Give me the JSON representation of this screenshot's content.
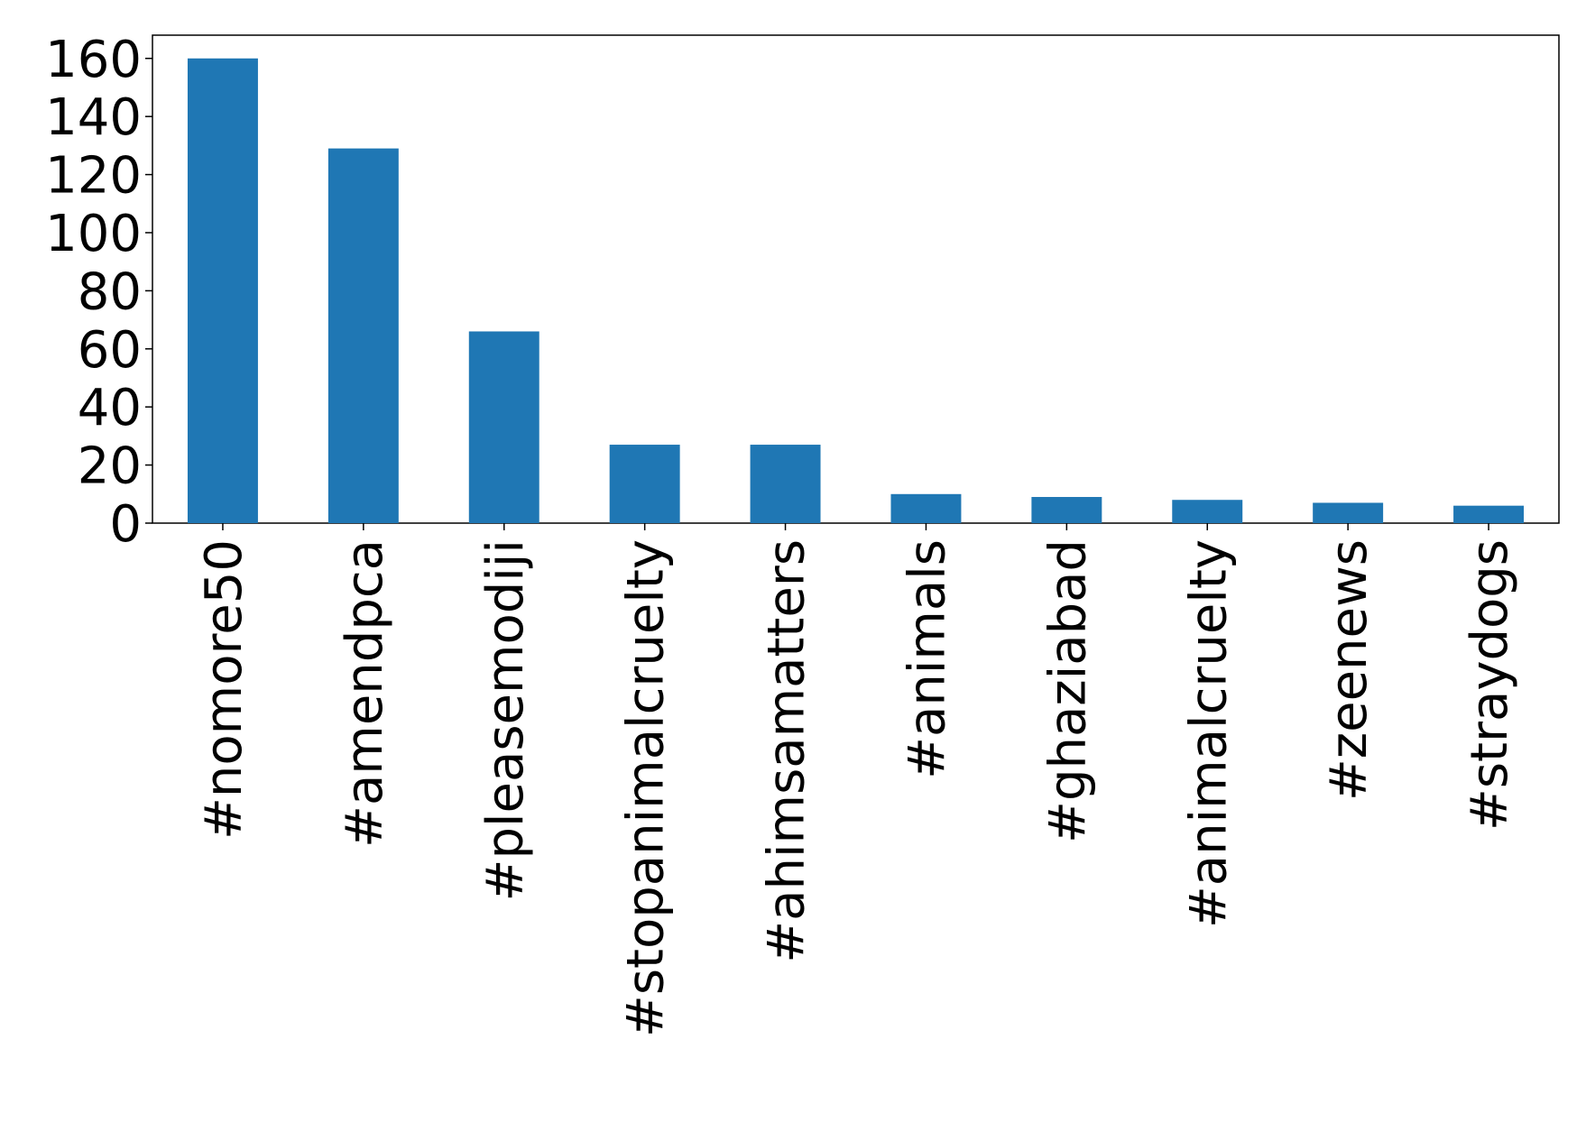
{
  "chart_data": {
    "type": "bar",
    "categories": [
      "#nomore50",
      "#amendpca",
      "#pleasemodiji",
      "#stopanimalcruelty",
      "#ahimsamatters",
      "#animals",
      "#ghaziabad",
      "#animalcruelty",
      "#zeenews",
      "#straydogs"
    ],
    "values": [
      160,
      129,
      66,
      27,
      27,
      10,
      9,
      8,
      7,
      6
    ],
    "color": "#1f77b4",
    "ylim": [
      0,
      168
    ],
    "yticks": [
      0,
      20,
      40,
      60,
      80,
      100,
      120,
      140,
      160
    ],
    "grid": false
  }
}
